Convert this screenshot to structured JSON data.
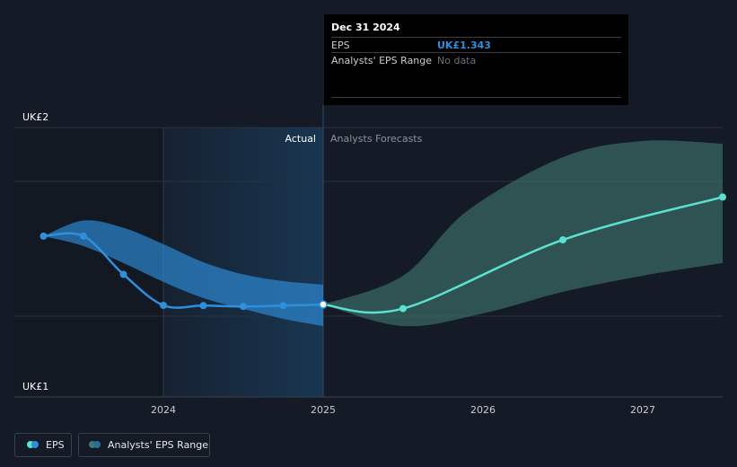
{
  "chart_data": {
    "type": "line",
    "x_axis": {
      "ticks": [
        "2024",
        "2025",
        "2026",
        "2027"
      ]
    },
    "y_axis": {
      "ticks": [
        "UK£1",
        "UK£2"
      ],
      "range": [
        1.0,
        2.0
      ]
    },
    "regions": {
      "actual_label": "Actual",
      "forecast_label": "Analysts Forecasts"
    },
    "series": [
      {
        "name": "EPS",
        "role": "actual",
        "color": "#2e8fdd",
        "points": [
          {
            "x": 2023.25,
            "y": 1.597
          },
          {
            "x": 2023.5,
            "y": 1.597
          },
          {
            "x": 2023.75,
            "y": 1.455
          },
          {
            "x": 2024.0,
            "y": 1.34
          },
          {
            "x": 2024.25,
            "y": 1.339
          },
          {
            "x": 2024.5,
            "y": 1.336
          },
          {
            "x": 2024.75,
            "y": 1.339
          },
          {
            "x": 2025.0,
            "y": 1.343
          }
        ]
      },
      {
        "name": "EPS",
        "role": "forecast",
        "color": "#5ce0cf",
        "points": [
          {
            "x": 2025.0,
            "y": 1.343
          },
          {
            "x": 2025.5,
            "y": 1.328
          },
          {
            "x": 2026.5,
            "y": 1.583
          },
          {
            "x": 2027.5,
            "y": 1.742
          }
        ]
      }
    ],
    "bands": [
      {
        "name": "Analysts' EPS Range",
        "role": "actual",
        "color": "#2e8fdd",
        "upper": [
          {
            "x": 2023.25,
            "y": 1.597
          },
          {
            "x": 2023.5,
            "y": 1.655
          },
          {
            "x": 2023.75,
            "y": 1.628
          },
          {
            "x": 2024.0,
            "y": 1.567
          },
          {
            "x": 2024.25,
            "y": 1.5
          },
          {
            "x": 2024.5,
            "y": 1.455
          },
          {
            "x": 2024.75,
            "y": 1.43
          },
          {
            "x": 2025.0,
            "y": 1.417
          }
        ],
        "lower": [
          {
            "x": 2023.25,
            "y": 1.597
          },
          {
            "x": 2023.5,
            "y": 1.56
          },
          {
            "x": 2023.75,
            "y": 1.497
          },
          {
            "x": 2024.0,
            "y": 1.427
          },
          {
            "x": 2024.25,
            "y": 1.367
          },
          {
            "x": 2024.5,
            "y": 1.327
          },
          {
            "x": 2024.75,
            "y": 1.29
          },
          {
            "x": 2025.0,
            "y": 1.263
          }
        ]
      },
      {
        "name": "Analysts' EPS Range",
        "role": "forecast",
        "color": "#3f7a70",
        "upper": [
          {
            "x": 2025.0,
            "y": 1.343
          },
          {
            "x": 2025.5,
            "y": 1.45
          },
          {
            "x": 2025.9,
            "y": 1.69
          },
          {
            "x": 2026.5,
            "y": 1.89
          },
          {
            "x": 2027.0,
            "y": 1.95
          },
          {
            "x": 2027.5,
            "y": 1.94
          }
        ],
        "lower": [
          {
            "x": 2025.0,
            "y": 1.343
          },
          {
            "x": 2025.5,
            "y": 1.263
          },
          {
            "x": 2026.0,
            "y": 1.31
          },
          {
            "x": 2026.5,
            "y": 1.39
          },
          {
            "x": 2027.0,
            "y": 1.45
          },
          {
            "x": 2027.5,
            "y": 1.497
          }
        ]
      }
    ],
    "grid": true,
    "legend_position": "bottom-left"
  },
  "tooltip": {
    "date": "Dec 31 2024",
    "rows": [
      {
        "label": "EPS",
        "value": "UK£1.343",
        "value_color": "#2e8fdd"
      },
      {
        "label": "Analysts' EPS Range",
        "value": "No data",
        "value_color": "#6b7079"
      }
    ]
  },
  "legend": {
    "items": [
      {
        "label": "EPS",
        "colors": [
          "#2e8fdd",
          "#5ce0cf"
        ]
      },
      {
        "label": "Analysts' EPS Range",
        "colors": [
          "#2e6c9e",
          "#3f7a70"
        ]
      }
    ]
  }
}
